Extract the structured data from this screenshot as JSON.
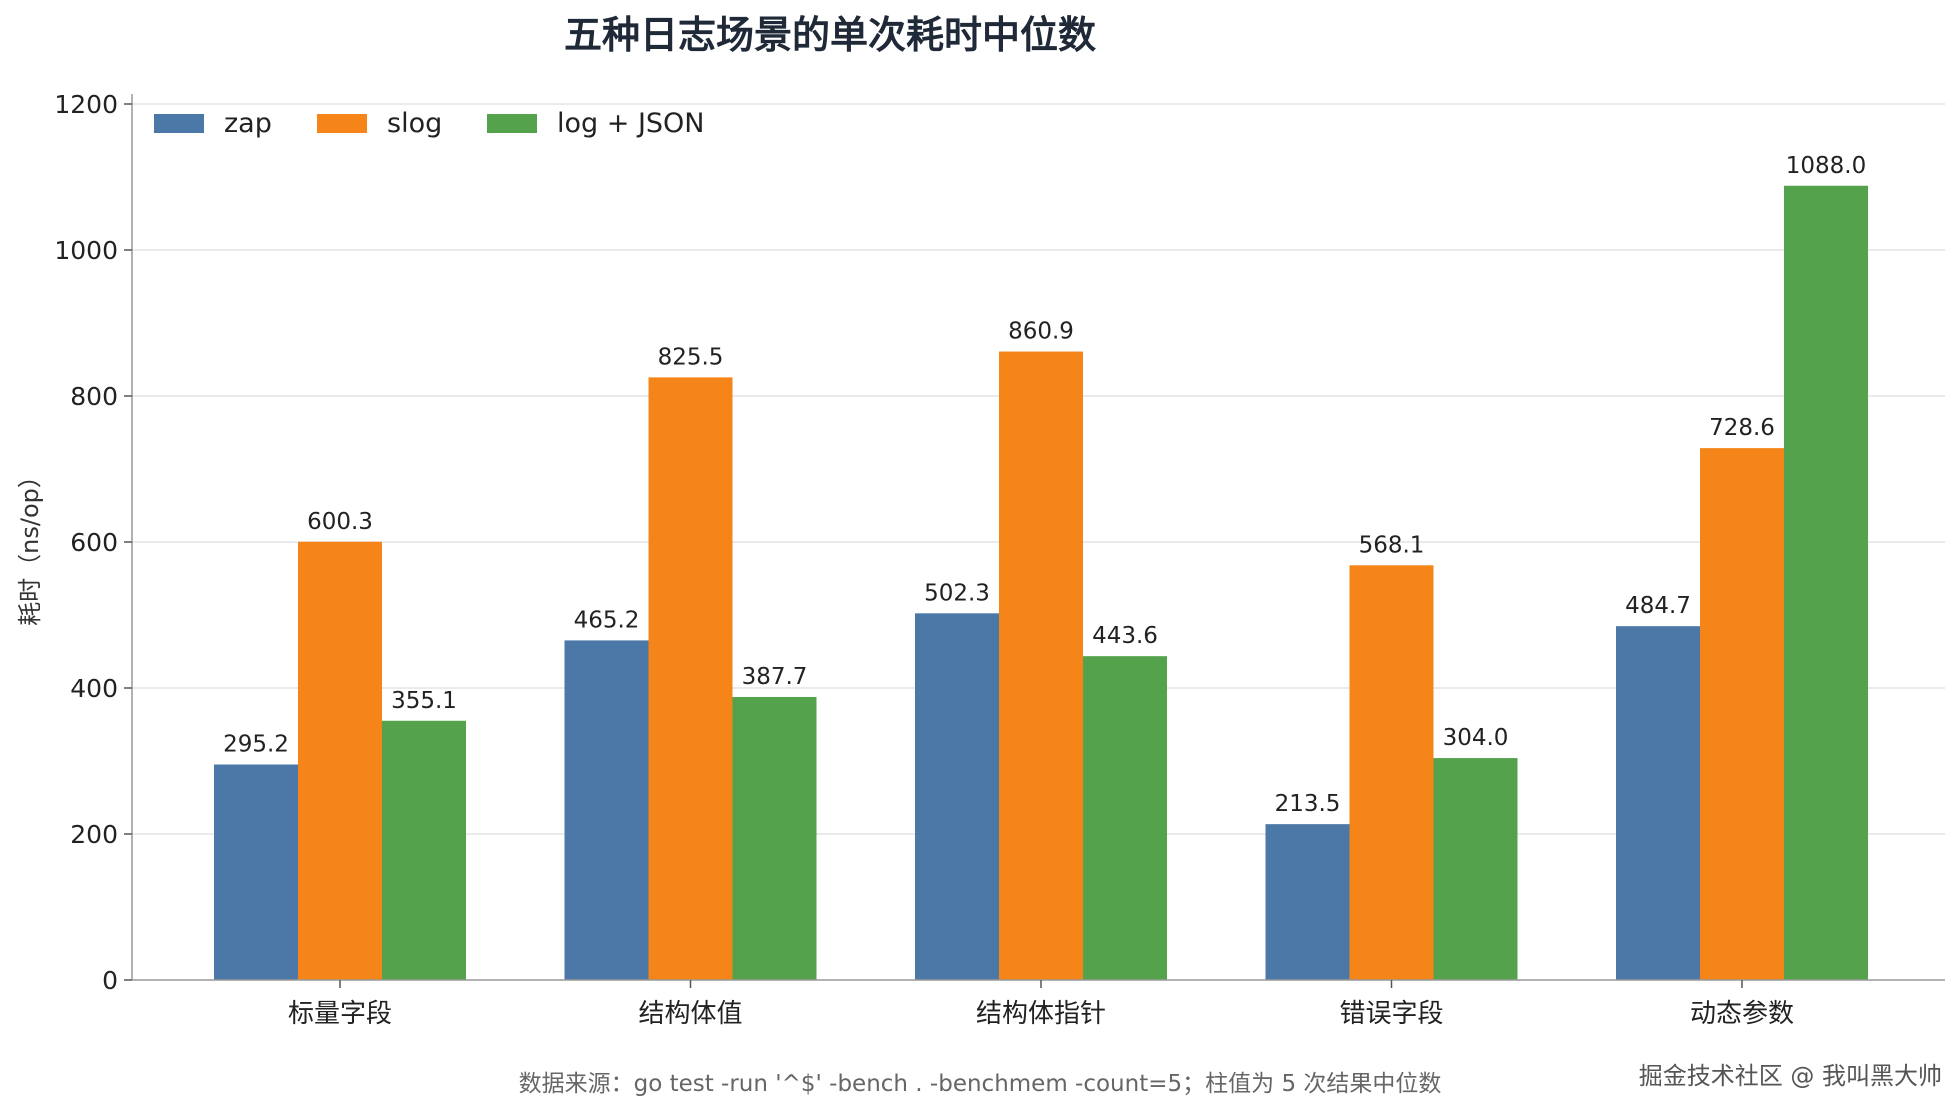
{
  "chart_data": {
    "type": "bar",
    "title": "五种日志场景的单次耗时中位数",
    "ylabel": "耗时（ns/op）",
    "xlabel": "",
    "categories": [
      "标量字段",
      "结构体值",
      "结构体指针",
      "错误字段",
      "动态参数"
    ],
    "series": [
      {
        "name": "zap",
        "color": "#4c78a8",
        "values": [
          295.2,
          465.2,
          502.3,
          213.5,
          484.7
        ]
      },
      {
        "name": "slog",
        "color": "#f58518",
        "values": [
          600.3,
          825.5,
          860.9,
          568.1,
          728.6
        ]
      },
      {
        "name": "log + JSON",
        "color": "#54a24b",
        "values": [
          355.1,
          387.7,
          443.6,
          304.0,
          1088.0
        ]
      }
    ],
    "ylim": [
      0,
      1200
    ],
    "yticks": [
      0,
      200,
      400,
      600,
      800,
      1000,
      1200
    ],
    "grid": true,
    "legend_position": "top-left"
  },
  "footnote": "数据来源：go test -run '^$' -bench . -benchmem -count=5；柱值为 5 次结果中位数",
  "watermark": "掘金技术社区 @ 我叫黑大帅"
}
